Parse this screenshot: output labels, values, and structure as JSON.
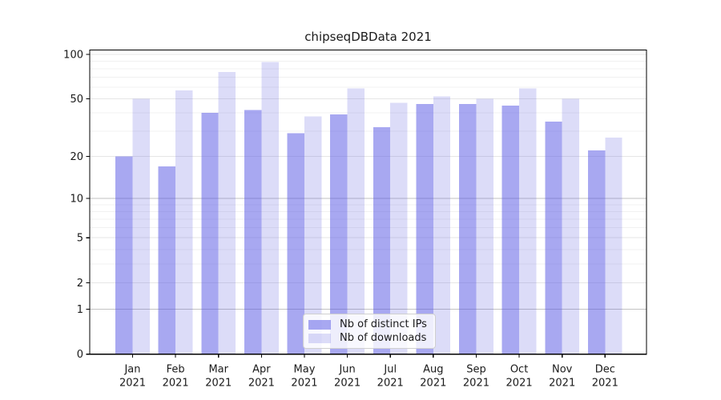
{
  "chart_data": {
    "type": "bar",
    "title": "chipseqDBData 2021",
    "categories": [
      "Jan 2021",
      "Feb 2021",
      "Mar 2021",
      "Apr 2021",
      "May 2021",
      "Jun 2021",
      "Jul 2021",
      "Aug 2021",
      "Sep 2021",
      "Oct 2021",
      "Nov 2021",
      "Dec 2021"
    ],
    "series": [
      {
        "name": "Nb of distinct IPs",
        "color": "rgba(82,82,228,0.50)",
        "values": [
          20,
          17,
          40,
          42,
          29,
          39,
          32,
          46,
          46,
          45,
          35,
          22
        ]
      },
      {
        "name": "Nb of downloads",
        "color": "rgba(80,80,220,0.20)",
        "values": [
          50,
          57,
          76,
          89,
          38,
          59,
          47,
          52,
          50,
          59,
          50,
          27
        ]
      }
    ],
    "xlabel": "",
    "ylabel": "",
    "y_scale": "log1p",
    "y_ticks": [
      0,
      1,
      2,
      5,
      10,
      20,
      50,
      100
    ],
    "y_minor_ticks": [
      3,
      4,
      6,
      7,
      8,
      9,
      30,
      40,
      60,
      70,
      80,
      90
    ],
    "ylim": [
      0,
      107
    ],
    "grid": true,
    "legend_position": "lower center",
    "colors": {
      "grid_strong": "#c2c2c2",
      "grid_weak": "#e6e6e6",
      "grid_minor": "#f1f1f1",
      "axis": "#000000",
      "text": "#1a1a1a"
    }
  }
}
